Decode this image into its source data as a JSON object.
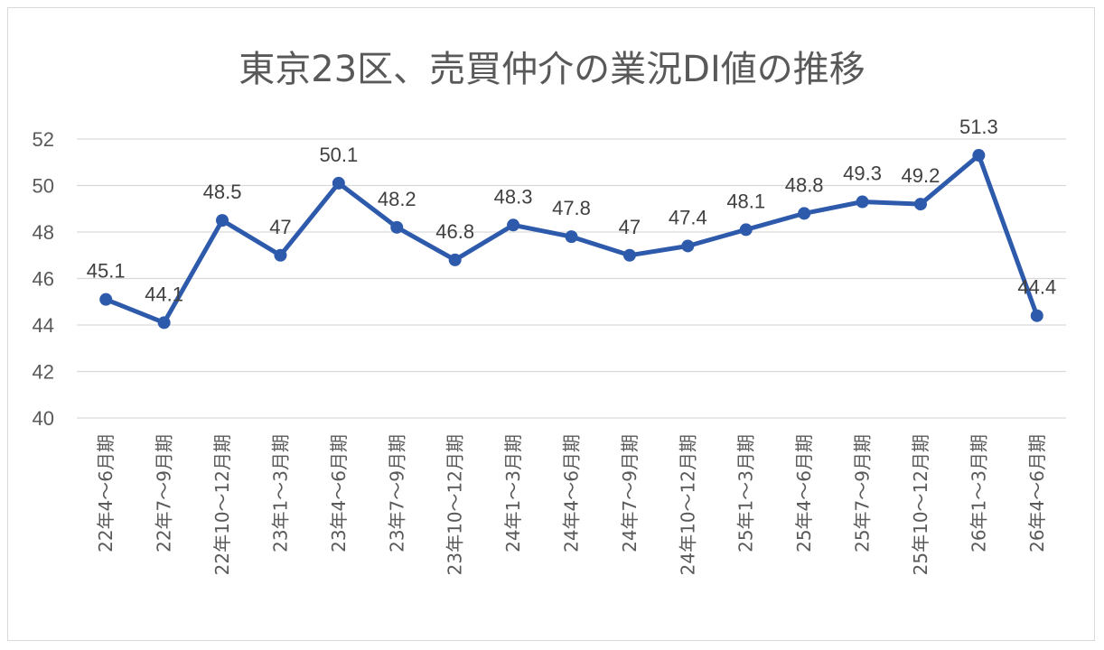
{
  "chart_data": {
    "type": "line",
    "title": "東京23区、売買仲介の業況DI値の推移",
    "xlabel": "",
    "ylabel": "",
    "ylim": [
      40,
      52
    ],
    "yticks": [
      "40",
      "42",
      "44",
      "46",
      "48",
      "50",
      "52"
    ],
    "grid": true,
    "line_color": "#2e5aac",
    "categories": [
      "22年4～6月期",
      "22年7～9月期",
      "22年10～12月期",
      "23年1～3月期",
      "23年4～6月期",
      "23年7～9月期",
      "23年10～12月期",
      "24年1～3月期",
      "24年4～6月期",
      "24年7～9月期",
      "24年10～12月期",
      "25年1～3月期",
      "25年4～6月期",
      "25年7～9月期",
      "25年10～12月期",
      "26年1～3月期",
      "26年4～6月期"
    ],
    "values": [
      45.1,
      44.1,
      48.5,
      47,
      50.1,
      48.2,
      46.8,
      48.3,
      47.8,
      47,
      47.4,
      48.1,
      48.8,
      49.3,
      49.2,
      51.3,
      44.4
    ],
    "data_labels": [
      "45.1",
      "44.1",
      "48.5",
      "47",
      "50.1",
      "48.2",
      "46.8",
      "48.3",
      "47.8",
      "47",
      "47.4",
      "48.1",
      "48.8",
      "49.3",
      "49.2",
      "51.3",
      "44.4"
    ]
  }
}
